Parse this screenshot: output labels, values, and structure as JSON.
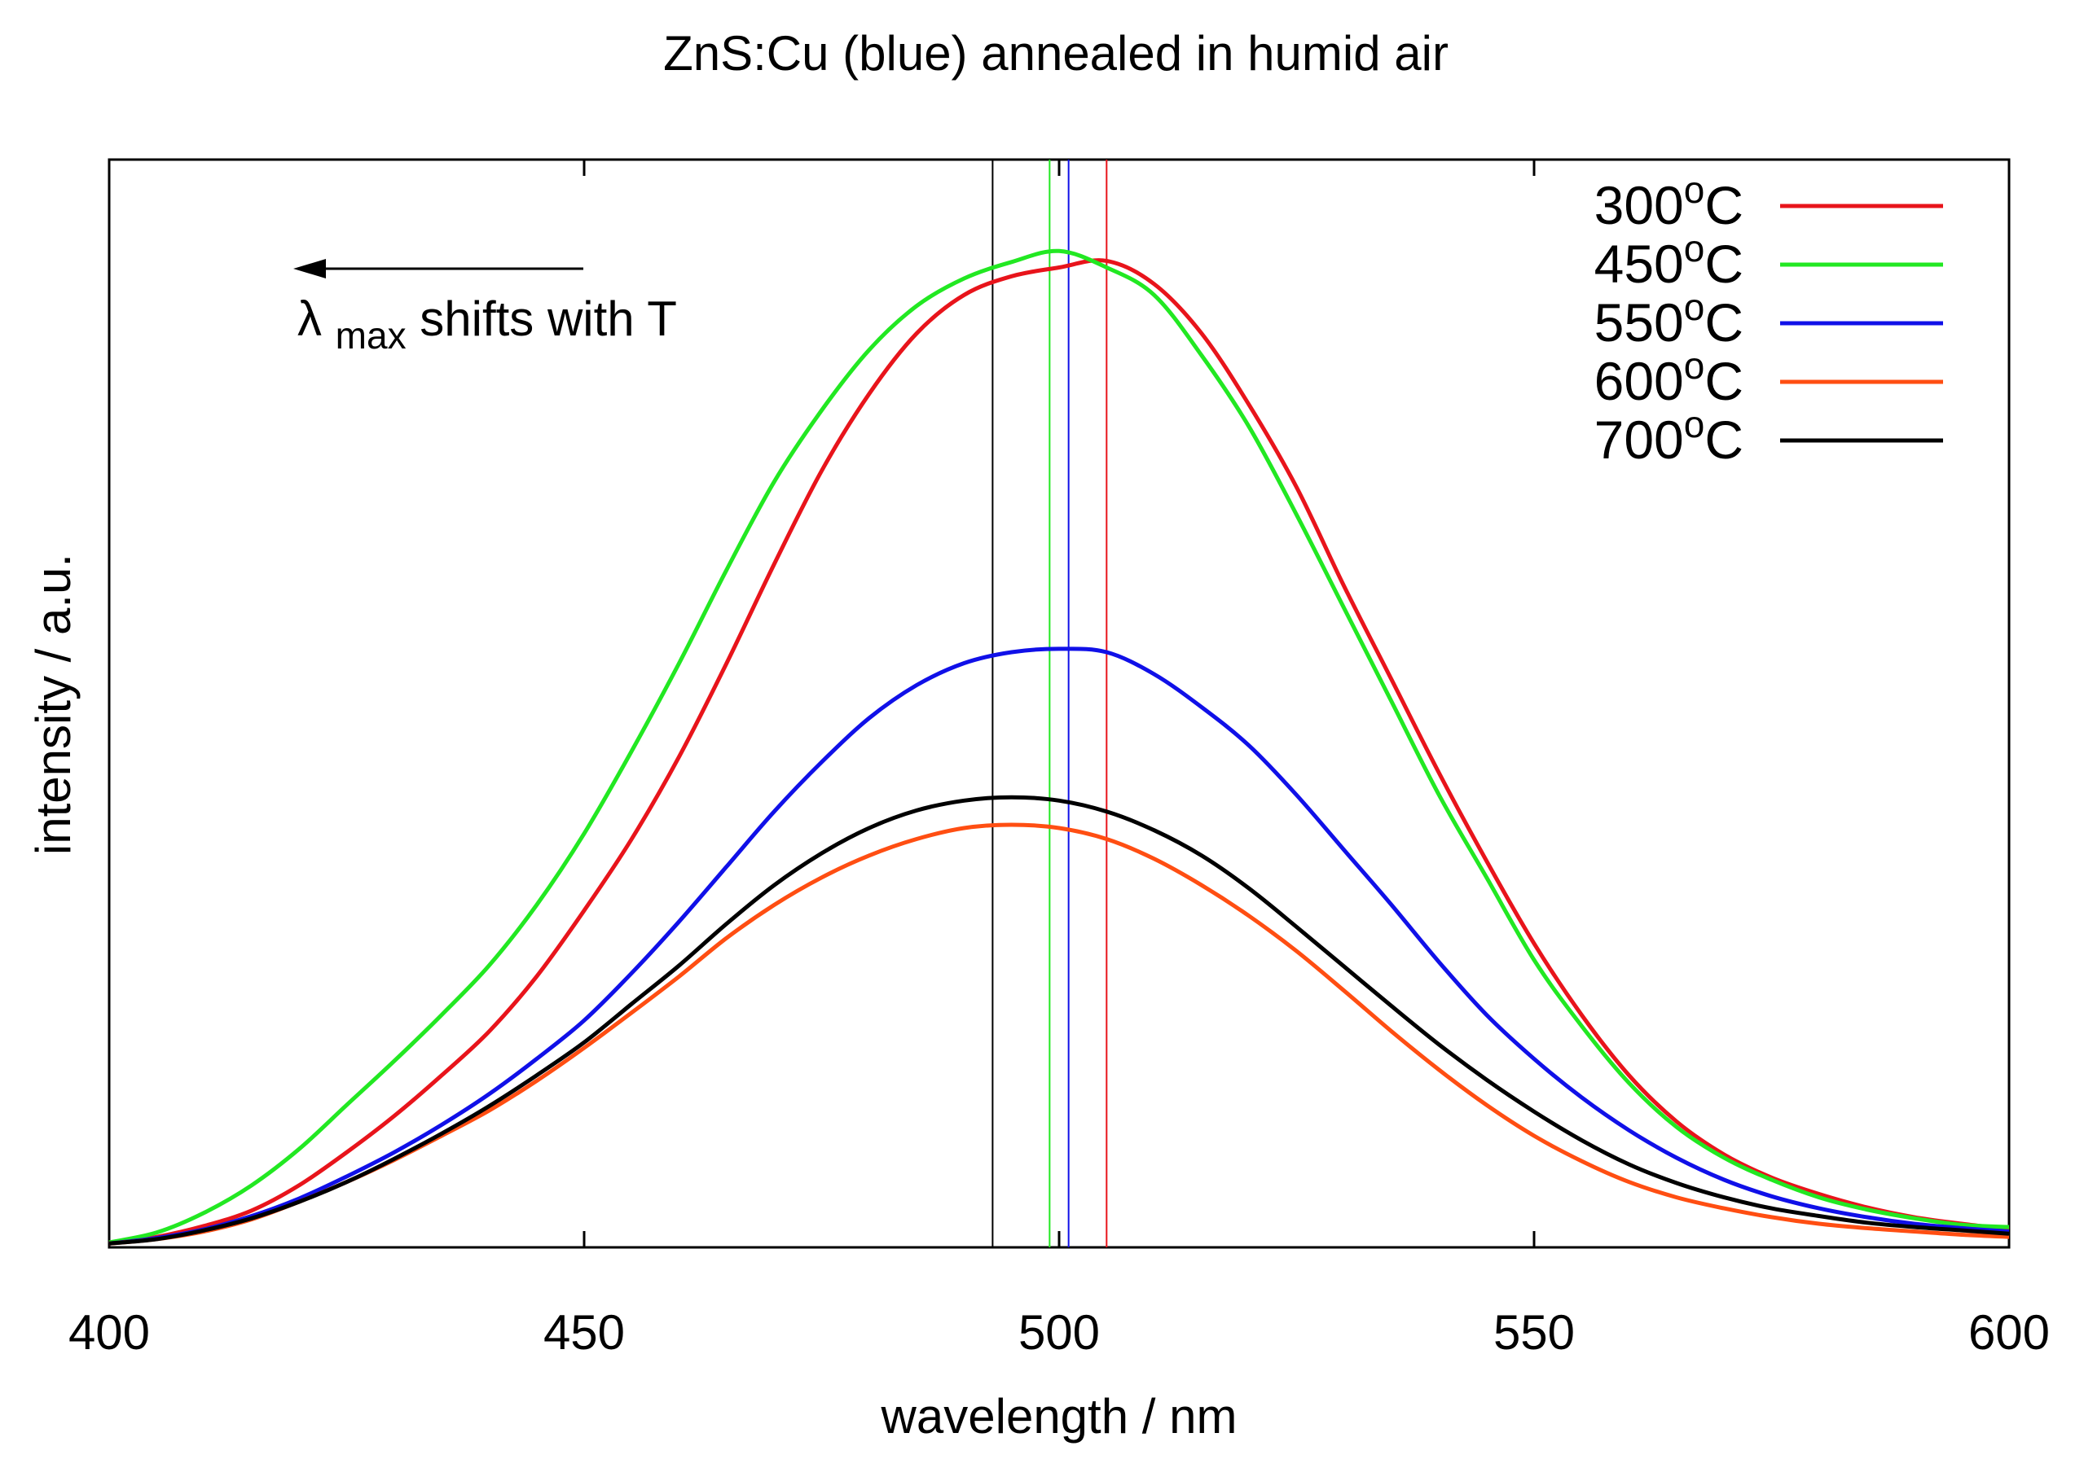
{
  "chart_data": {
    "type": "line",
    "title": "ZnS:Cu (blue) annealed in humid air",
    "xlabel": "wavelength / nm",
    "ylabel": "intensity / a.u.",
    "xlim": [
      400,
      600
    ],
    "ylim": [
      0,
      1.0
    ],
    "xticks": [
      400,
      450,
      500,
      550,
      600
    ],
    "grid": false,
    "legend_position": "top-right",
    "annotation": {
      "symbol": "λ",
      "subscript": "max",
      "text": " shifts with T",
      "arrow_from_x": 450,
      "arrow_to_x": 420,
      "arrow_y": 0.9
    },
    "series": [
      {
        "name": "300",
        "unit_sup": "o",
        "unit": "C",
        "color": "#e8141b",
        "peak_marker_x": 505,
        "x": [
          400,
          405,
          410,
          415,
          420,
          425,
          430,
          435,
          440,
          445,
          450,
          455,
          460,
          465,
          470,
          475,
          480,
          485,
          490,
          495,
          500,
          505,
          510,
          515,
          520,
          525,
          530,
          535,
          540,
          545,
          550,
          555,
          560,
          565,
          570,
          575,
          580,
          585,
          590,
          595,
          600
        ],
        "y": [
          0.002,
          0.008,
          0.018,
          0.032,
          0.055,
          0.085,
          0.118,
          0.155,
          0.195,
          0.245,
          0.305,
          0.37,
          0.445,
          0.53,
          0.62,
          0.705,
          0.775,
          0.83,
          0.865,
          0.882,
          0.89,
          0.896,
          0.875,
          0.83,
          0.765,
          0.69,
          0.6,
          0.515,
          0.43,
          0.35,
          0.275,
          0.21,
          0.155,
          0.113,
          0.083,
          0.062,
          0.047,
          0.035,
          0.026,
          0.02,
          0.015
        ]
      },
      {
        "name": "450",
        "unit_sup": "o",
        "unit": "C",
        "color": "#22e822",
        "peak_marker_x": 499,
        "x": [
          400,
          405,
          410,
          415,
          420,
          425,
          430,
          435,
          440,
          445,
          450,
          455,
          460,
          465,
          470,
          475,
          480,
          485,
          490,
          495,
          500,
          505,
          510,
          515,
          520,
          525,
          530,
          535,
          540,
          545,
          550,
          555,
          560,
          565,
          570,
          575,
          580,
          585,
          590,
          595,
          600
        ],
        "y": [
          0.003,
          0.012,
          0.03,
          0.055,
          0.088,
          0.128,
          0.168,
          0.21,
          0.255,
          0.31,
          0.375,
          0.45,
          0.53,
          0.615,
          0.695,
          0.76,
          0.815,
          0.855,
          0.88,
          0.895,
          0.905,
          0.89,
          0.865,
          0.81,
          0.745,
          0.665,
          0.58,
          0.495,
          0.41,
          0.335,
          0.26,
          0.2,
          0.148,
          0.108,
          0.08,
          0.06,
          0.044,
          0.033,
          0.025,
          0.019,
          0.017
        ]
      },
      {
        "name": "550",
        "unit_sup": "o",
        "unit": "C",
        "color": "#1010e8",
        "peak_marker_x": 501,
        "x": [
          400,
          405,
          410,
          415,
          420,
          425,
          430,
          435,
          440,
          445,
          450,
          455,
          460,
          465,
          470,
          475,
          480,
          485,
          490,
          495,
          500,
          505,
          510,
          515,
          520,
          525,
          530,
          535,
          540,
          545,
          550,
          555,
          560,
          565,
          570,
          575,
          580,
          585,
          590,
          595,
          600
        ],
        "y": [
          0.002,
          0.007,
          0.015,
          0.027,
          0.043,
          0.063,
          0.085,
          0.11,
          0.138,
          0.17,
          0.205,
          0.248,
          0.295,
          0.345,
          0.395,
          0.44,
          0.48,
          0.51,
          0.53,
          0.54,
          0.543,
          0.54,
          0.52,
          0.49,
          0.455,
          0.41,
          0.36,
          0.31,
          0.258,
          0.21,
          0.17,
          0.135,
          0.105,
          0.08,
          0.06,
          0.045,
          0.034,
          0.026,
          0.02,
          0.016,
          0.013
        ]
      },
      {
        "name": "600",
        "unit_sup": "o",
        "unit": "C",
        "color": "#ff4e12",
        "peak_marker_x": null,
        "x": [
          400,
          405,
          410,
          415,
          420,
          425,
          430,
          435,
          440,
          445,
          450,
          455,
          460,
          465,
          470,
          475,
          480,
          485,
          490,
          495,
          500,
          505,
          510,
          515,
          520,
          525,
          530,
          535,
          540,
          545,
          550,
          555,
          560,
          565,
          570,
          575,
          580,
          585,
          590,
          595,
          600
        ],
        "y": [
          0.002,
          0.006,
          0.013,
          0.024,
          0.04,
          0.058,
          0.078,
          0.1,
          0.123,
          0.15,
          0.18,
          0.212,
          0.245,
          0.28,
          0.31,
          0.335,
          0.355,
          0.37,
          0.38,
          0.383,
          0.38,
          0.37,
          0.352,
          0.328,
          0.3,
          0.268,
          0.232,
          0.195,
          0.16,
          0.128,
          0.1,
          0.077,
          0.058,
          0.044,
          0.034,
          0.026,
          0.02,
          0.016,
          0.013,
          0.01,
          0.008
        ]
      },
      {
        "name": "700",
        "unit_sup": "o",
        "unit": "C",
        "color": "#000000",
        "peak_marker_x": 493,
        "x": [
          400,
          405,
          410,
          415,
          420,
          425,
          430,
          435,
          440,
          445,
          450,
          455,
          460,
          465,
          470,
          475,
          480,
          485,
          490,
          495,
          500,
          505,
          510,
          515,
          520,
          525,
          530,
          535,
          540,
          545,
          550,
          555,
          560,
          565,
          570,
          575,
          580,
          585,
          590,
          595,
          600
        ],
        "y": [
          0.002,
          0.006,
          0.014,
          0.025,
          0.04,
          0.058,
          0.079,
          0.102,
          0.127,
          0.155,
          0.185,
          0.22,
          0.255,
          0.293,
          0.328,
          0.357,
          0.38,
          0.396,
          0.405,
          0.408,
          0.405,
          0.395,
          0.378,
          0.355,
          0.325,
          0.29,
          0.254,
          0.218,
          0.183,
          0.151,
          0.122,
          0.096,
          0.074,
          0.057,
          0.044,
          0.034,
          0.027,
          0.021,
          0.017,
          0.014,
          0.011
        ]
      }
    ]
  }
}
